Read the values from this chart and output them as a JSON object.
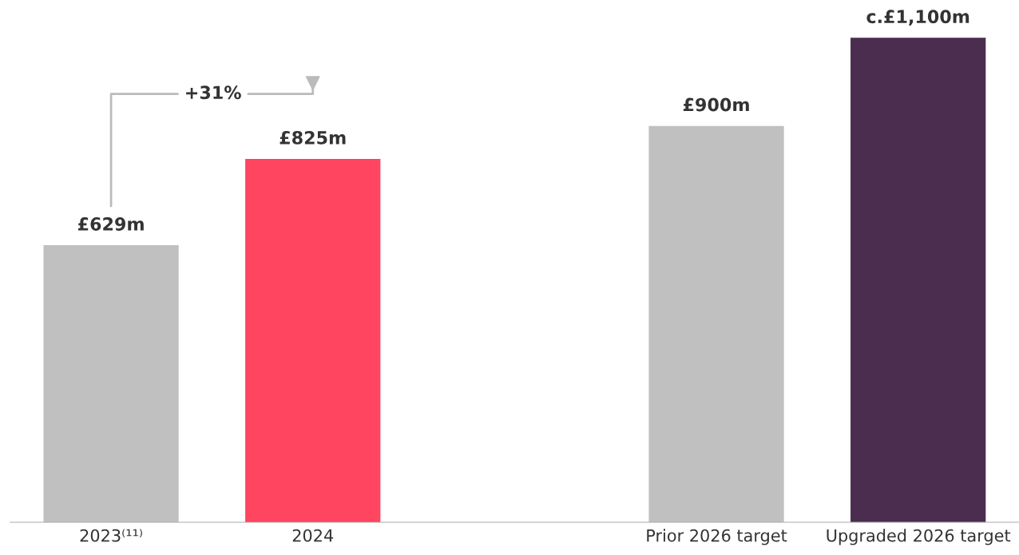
{
  "chart_data": {
    "type": "bar",
    "categories": [
      "2023⁽¹¹⁾",
      "2024",
      null,
      "Prior 2026 target",
      "Upgraded 2026 target"
    ],
    "values": [
      629,
      825,
      null,
      900,
      1100
    ],
    "colors": [
      "#c0c0c0",
      "#ff4560",
      "#c0c0c0",
      "#c0c0c0",
      "#4b2d50"
    ],
    "value_labels": [
      "£629m",
      "£825m",
      null,
      "£900m",
      "c.£1,100m"
    ],
    "annotations": [
      "+31%"
    ],
    "grid": false
  }
}
